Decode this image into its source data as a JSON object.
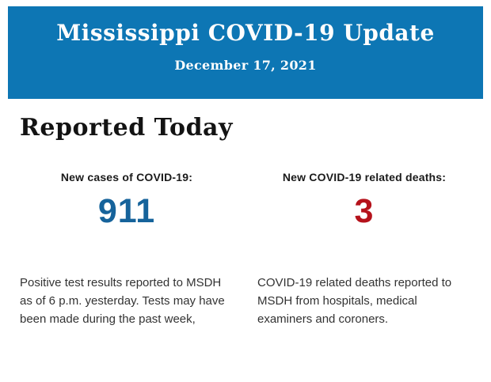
{
  "header": {
    "title": "Mississippi COVID-19 Update",
    "date": "December 17, 2021",
    "bg_color": "#0d76b4",
    "text_color": "#fdfdfd"
  },
  "section": {
    "title": "Reported Today"
  },
  "stats": [
    {
      "label": "New cases of COVID-19:",
      "value": "911",
      "value_color": "#16639b",
      "description": "Positive test results reported to MSDH as of 6 p.m. yesterday. Tests may have been made during the past week,"
    },
    {
      "label": "New COVID-19 related deaths:",
      "value": "3",
      "value_color": "#b5121b",
      "description": "COVID-19 related deaths reported to MSDH from hospitals, medical examiners and coroners."
    }
  ]
}
